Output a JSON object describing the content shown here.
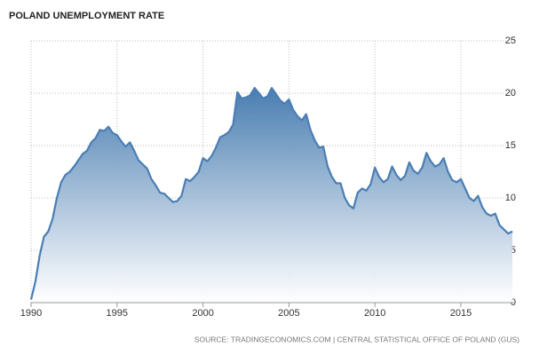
{
  "chart_data": {
    "type": "area",
    "title": "POLAND UNEMPLOYMENT RATE",
    "source": "SOURCE: TRADINGECONOMICS.COM | CENTRAL STATISTICAL OFFICE OF POLAND (GUS)",
    "color": "#4a7eb4",
    "x": [
      1990.0,
      1990.25,
      1990.5,
      1990.75,
      1991.0,
      1991.25,
      1991.5,
      1991.75,
      1992.0,
      1992.25,
      1992.5,
      1992.75,
      1993.0,
      1993.25,
      1993.5,
      1993.75,
      1994.0,
      1994.25,
      1994.5,
      1994.75,
      1995.0,
      1995.25,
      1995.5,
      1995.75,
      1996.0,
      1996.25,
      1996.5,
      1996.75,
      1997.0,
      1997.25,
      1997.5,
      1997.75,
      1998.0,
      1998.25,
      1998.5,
      1998.75,
      1999.0,
      1999.25,
      1999.5,
      1999.75,
      2000.0,
      2000.25,
      2000.5,
      2000.75,
      2001.0,
      2001.25,
      2001.5,
      2001.75,
      2002.0,
      2002.25,
      2002.5,
      2002.75,
      2003.0,
      2003.25,
      2003.5,
      2003.75,
      2004.0,
      2004.25,
      2004.5,
      2004.75,
      2005.0,
      2005.25,
      2005.5,
      2005.75,
      2006.0,
      2006.25,
      2006.5,
      2006.75,
      2007.0,
      2007.25,
      2007.5,
      2007.75,
      2008.0,
      2008.25,
      2008.5,
      2008.75,
      2009.0,
      2009.25,
      2009.5,
      2009.75,
      2010.0,
      2010.25,
      2010.5,
      2010.75,
      2011.0,
      2011.25,
      2011.5,
      2011.75,
      2012.0,
      2012.25,
      2012.5,
      2012.75,
      2013.0,
      2013.25,
      2013.5,
      2013.75,
      2014.0,
      2014.25,
      2014.5,
      2014.75,
      2015.0,
      2015.25,
      2015.5,
      2015.75,
      2016.0,
      2016.25,
      2016.5,
      2016.75,
      2017.0,
      2017.25,
      2017.5,
      2017.75,
      2018.0
    ],
    "values": [
      0.3,
      2,
      4.5,
      6.3,
      6.8,
      8.0,
      10.0,
      11.5,
      12.2,
      12.5,
      13.0,
      13.6,
      14.2,
      14.5,
      15.3,
      15.7,
      16.5,
      16.4,
      16.8,
      16.2,
      16.0,
      15.4,
      14.9,
      15.3,
      14.5,
      13.6,
      13.2,
      12.8,
      11.8,
      11.2,
      10.5,
      10.4,
      10.0,
      9.6,
      9.7,
      10.2,
      11.8,
      11.6,
      12.0,
      12.5,
      13.8,
      13.5,
      14.0,
      14.8,
      15.8,
      16.0,
      16.3,
      17.0,
      20.1,
      19.5,
      19.6,
      19.8,
      20.5,
      20.0,
      19.5,
      19.7,
      20.5,
      19.9,
      19.3,
      19.0,
      19.4,
      18.4,
      17.8,
      17.4,
      18.0,
      16.5,
      15.5,
      14.8,
      14.9,
      13.0,
      12.0,
      11.4,
      11.4,
      10.0,
      9.3,
      9.0,
      10.5,
      10.9,
      10.7,
      11.3,
      12.9,
      12.0,
      11.5,
      11.8,
      13.0,
      12.2,
      11.7,
      12.1,
      13.4,
      12.6,
      12.3,
      12.9,
      14.3,
      13.5,
      13.0,
      13.2,
      13.8,
      12.5,
      11.7,
      11.5,
      11.8,
      10.9,
      10.0,
      9.7,
      10.2,
      9.1,
      8.5,
      8.3,
      8.5,
      7.4,
      7.0,
      6.6,
      6.8
    ],
    "xlim": [
      1990,
      2018.1
    ],
    "xticks": [
      1990,
      1995,
      2000,
      2005,
      2010,
      2015
    ],
    "ylim": [
      0,
      25
    ],
    "yticks": [
      0,
      5,
      10,
      15,
      20,
      25
    ],
    "grid": true
  }
}
